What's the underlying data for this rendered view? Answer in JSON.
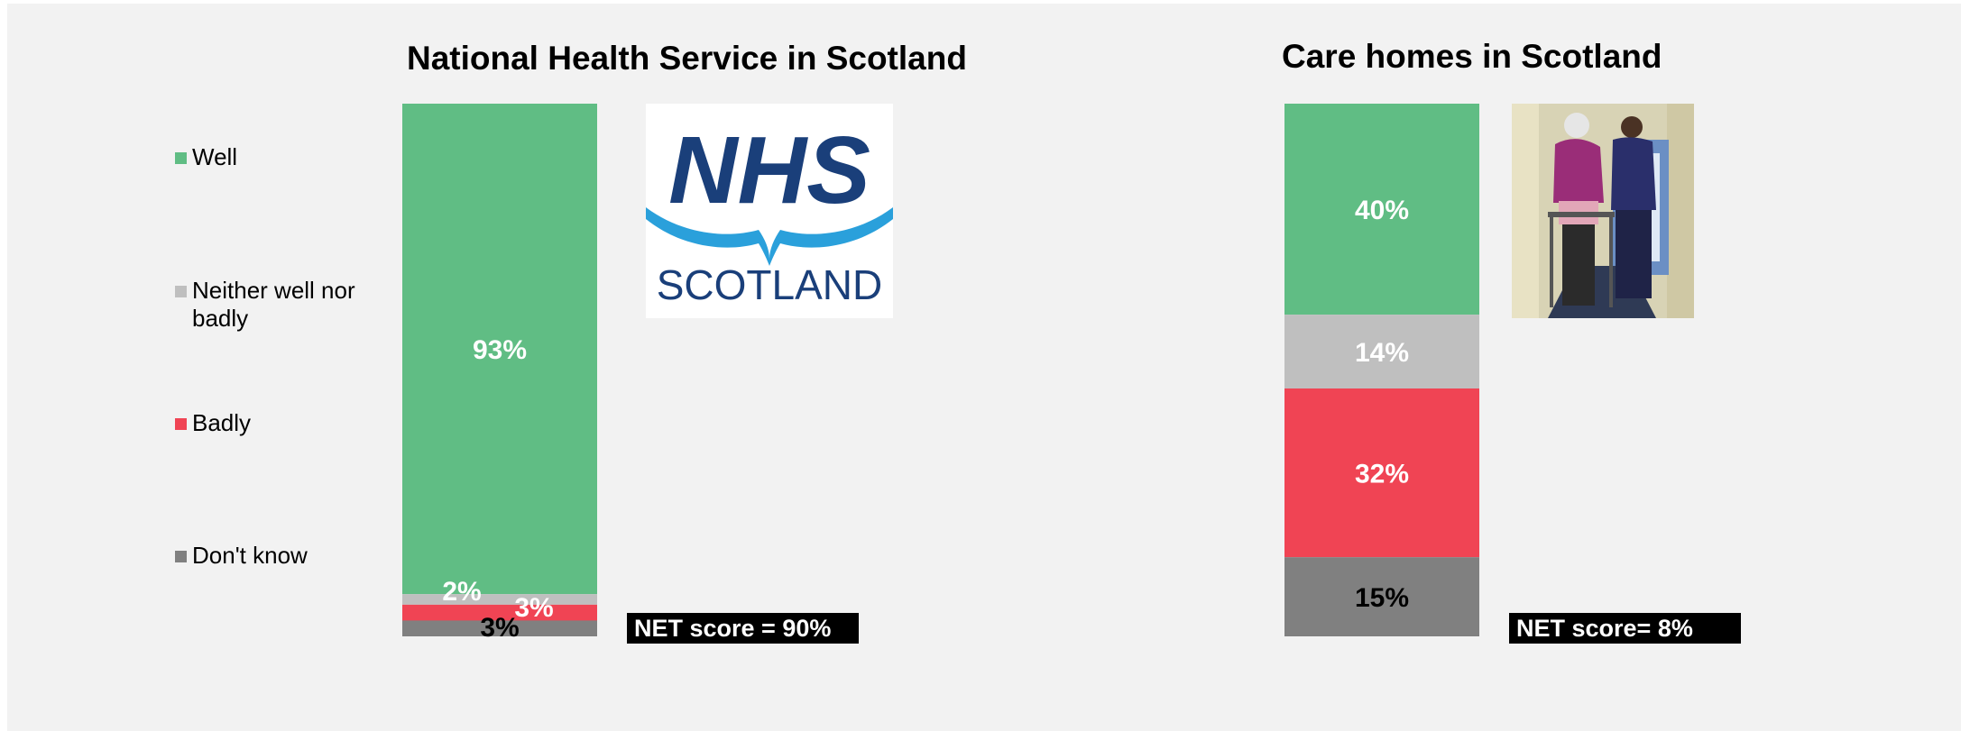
{
  "colors": {
    "well": "#60bd84",
    "neither": "#bfbfbf",
    "badly": "#f04454",
    "dont_know": "#808080",
    "background": "#f2f2f2"
  },
  "legend": [
    {
      "key": "well",
      "label": "Well"
    },
    {
      "key": "neither",
      "label": "Neither well nor badly"
    },
    {
      "key": "badly",
      "label": "Badly"
    },
    {
      "key": "dont_know",
      "label": "Don't know"
    }
  ],
  "chart_data": [
    {
      "type": "bar",
      "stacked": true,
      "title": "National Health Service in Scotland",
      "categories": [
        "National Health Service in Scotland"
      ],
      "series": [
        {
          "name": "Well",
          "values": [
            93
          ],
          "label": "93%"
        },
        {
          "name": "Neither well nor badly",
          "values": [
            2
          ],
          "label": "2%"
        },
        {
          "name": "Badly",
          "values": [
            3
          ],
          "label": "3%"
        },
        {
          "name": "Don't know",
          "values": [
            3
          ],
          "label": "3%"
        }
      ],
      "ylim": [
        0,
        100
      ],
      "grid": false,
      "legend": "left",
      "net_score": "NET score = 90%",
      "logo": {
        "icon": "nhs-scotland-logo",
        "text_main": "NHS",
        "text_sub": "SCOTLAND"
      }
    },
    {
      "type": "bar",
      "stacked": true,
      "title": "Care homes in Scotland",
      "categories": [
        "Care homes in Scotland"
      ],
      "series": [
        {
          "name": "Well",
          "values": [
            40
          ],
          "label": "40%"
        },
        {
          "name": "Neither well nor badly",
          "values": [
            14
          ],
          "label": "14%"
        },
        {
          "name": "Badly",
          "values": [
            32
          ],
          "label": "32%"
        },
        {
          "name": "Don't know",
          "values": [
            15
          ],
          "label": "15%"
        }
      ],
      "ylim": [
        0,
        100
      ],
      "grid": false,
      "legend": "left",
      "net_score": "NET score= 8%",
      "photo": {
        "icon": "care-home-photo"
      }
    }
  ]
}
